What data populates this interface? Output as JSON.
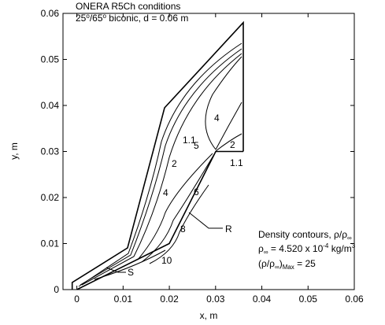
{
  "chart_data": {
    "type": "contour",
    "title": "ONERA R5Ch conditions",
    "subtitle": {
      "a": "25",
      "sup1": "o",
      "b": "/65",
      "sup2": "o",
      "c": " biconic, d = 0.06 m"
    },
    "xlabel": "x, m",
    "ylabel": "y, m",
    "xlim": [
      -0.003,
      0.06
    ],
    "ylim": [
      0,
      0.06
    ],
    "xticks": [
      0,
      0.01,
      0.02,
      0.03,
      0.04,
      0.05,
      0.06
    ],
    "yticks": [
      0,
      0.01,
      0.02,
      0.03,
      0.04,
      0.05,
      0.06
    ],
    "contour_labels": [
      "1.1",
      "2",
      "4",
      "5",
      "4",
      "2",
      "1.1",
      "6",
      "8",
      "10"
    ],
    "markers": [
      "S",
      "R"
    ],
    "legend": {
      "line1": "Density contours, ρ/ρ",
      "line1_sub": "∞",
      "line2_a": "ρ",
      "line2_sub": "∞",
      "line2_b": " = 4.520 x 10",
      "line2_sup": "-4",
      "line2_c": " kg/m",
      "line2_sup2": "3",
      "line3_a": "(ρ/ρ",
      "line3_sub": "∞",
      "line3_b": ")",
      "line3_sub2": "Max",
      "line3_c": " = 25"
    }
  }
}
